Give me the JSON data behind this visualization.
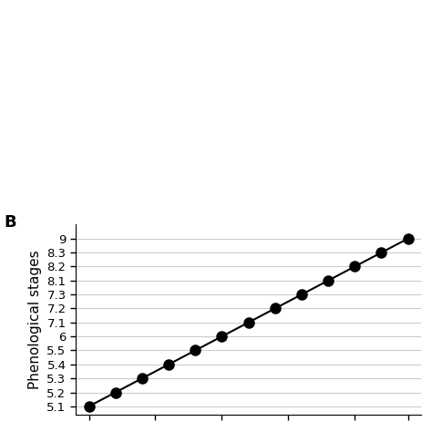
{
  "ylabel": "Phenological stages",
  "ytick_labels": [
    "5.1",
    "5.2",
    "5.3",
    "5.4",
    "5.5",
    "6",
    "7.1",
    "7.2",
    "7.3",
    "8.1",
    "8.2",
    "8.3",
    "9"
  ],
  "x_values": [
    1,
    2,
    3,
    4,
    5,
    6,
    7,
    8,
    9,
    10,
    11,
    12,
    13
  ],
  "y_values": [
    0,
    1,
    2,
    3,
    4,
    5,
    6,
    7,
    8,
    9,
    10,
    11,
    12
  ],
  "marker": "o",
  "marker_color": "black",
  "line_color": "black",
  "line_width": 1.5,
  "marker_size": 8,
  "background_color": "white",
  "panel_label": "B",
  "x_tick_positions": [
    1,
    3.5,
    6,
    8.5,
    11,
    13
  ],
  "ylim_bottom": -0.6,
  "ylim_top": 13.0,
  "xlim_left": 0.5,
  "xlim_right": 13.5,
  "grid_color": "#cccccc",
  "ylabel_fontsize": 11,
  "ytick_fontsize": 9.5
}
